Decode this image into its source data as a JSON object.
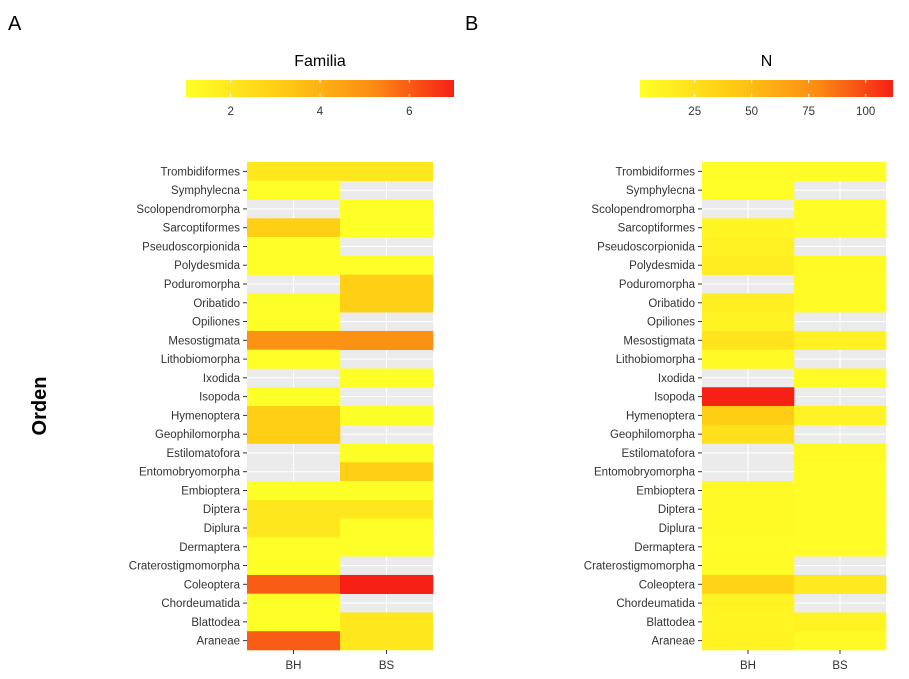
{
  "chart_data": [
    {
      "type": "heatmap",
      "panel_label": "A",
      "legend_title": "Familia",
      "legend_ticks": [
        2,
        4,
        6
      ],
      "value_range": [
        1,
        7
      ],
      "ylabel": "Orden",
      "x_categories": [
        "BH",
        "BS"
      ],
      "y_categories": [
        "Trombidiformes",
        "Symphylecna",
        "Scolopendromorpha",
        "Sarcoptiformes",
        "Pseudoscorpionida",
        "Polydesmida",
        "Poduromorpha",
        "Oribatido",
        "Opiliones",
        "Mesostigmata",
        "Lithobiomorpha",
        "Ixodida",
        "Isopoda",
        "Hymenoptera",
        "Geophilomorpha",
        "Estilomatofora",
        "Entomobryomorpha",
        "Embioptera",
        "Diptera",
        "Diplura",
        "Dermaptera",
        "Craterostigmomorpha",
        "Coleoptera",
        "Chordeumatida",
        "Blattodea",
        "Araneae"
      ],
      "values": [
        [
          2,
          2
        ],
        [
          1,
          null
        ],
        [
          null,
          1
        ],
        [
          3,
          1
        ],
        [
          1,
          null
        ],
        [
          1,
          1
        ],
        [
          null,
          3
        ],
        [
          1,
          3
        ],
        [
          1,
          null
        ],
        [
          5,
          5
        ],
        [
          1,
          null
        ],
        [
          null,
          1
        ],
        [
          1,
          null
        ],
        [
          3,
          1
        ],
        [
          3,
          null
        ],
        [
          null,
          1
        ],
        [
          null,
          3
        ],
        [
          1,
          1
        ],
        [
          2,
          2
        ],
        [
          2,
          1
        ],
        [
          1,
          1
        ],
        [
          1,
          null
        ],
        [
          6,
          7
        ],
        [
          1,
          null
        ],
        [
          1,
          2
        ],
        [
          6,
          2
        ]
      ]
    },
    {
      "type": "heatmap",
      "panel_label": "B",
      "legend_title": "N",
      "legend_ticks": [
        25,
        50,
        75,
        100
      ],
      "value_range": [
        1,
        112
      ],
      "x_categories": [
        "BH",
        "BS"
      ],
      "y_categories": [
        "Trombidiformes",
        "Symphylecna",
        "Scolopendromorpha",
        "Sarcoptiformes",
        "Pseudoscorpionida",
        "Polydesmida",
        "Poduromorpha",
        "Oribatido",
        "Opiliones",
        "Mesostigmata",
        "Lithobiomorpha",
        "Ixodida",
        "Isopoda",
        "Hymenoptera",
        "Geophilomorpha",
        "Estilomatofora",
        "Entomobryomorpha",
        "Embioptera",
        "Diptera",
        "Diplura",
        "Dermaptera",
        "Craterostigmomorpha",
        "Coleoptera",
        "Chordeumatida",
        "Blattodea",
        "Araneae"
      ],
      "values": [
        [
          3,
          3
        ],
        [
          2,
          null
        ],
        [
          null,
          3
        ],
        [
          8,
          3
        ],
        [
          12,
          null
        ],
        [
          15,
          5
        ],
        [
          null,
          4
        ],
        [
          14,
          4
        ],
        [
          10,
          null
        ],
        [
          22,
          12
        ],
        [
          6,
          null
        ],
        [
          null,
          4
        ],
        [
          112,
          null
        ],
        [
          40,
          10
        ],
        [
          25,
          null
        ],
        [
          null,
          5
        ],
        [
          null,
          3
        ],
        [
          6,
          3
        ],
        [
          5,
          3
        ],
        [
          5,
          3
        ],
        [
          3,
          3
        ],
        [
          4,
          null
        ],
        [
          35,
          18
        ],
        [
          10,
          null
        ],
        [
          8,
          10
        ],
        [
          10,
          5
        ]
      ]
    }
  ]
}
